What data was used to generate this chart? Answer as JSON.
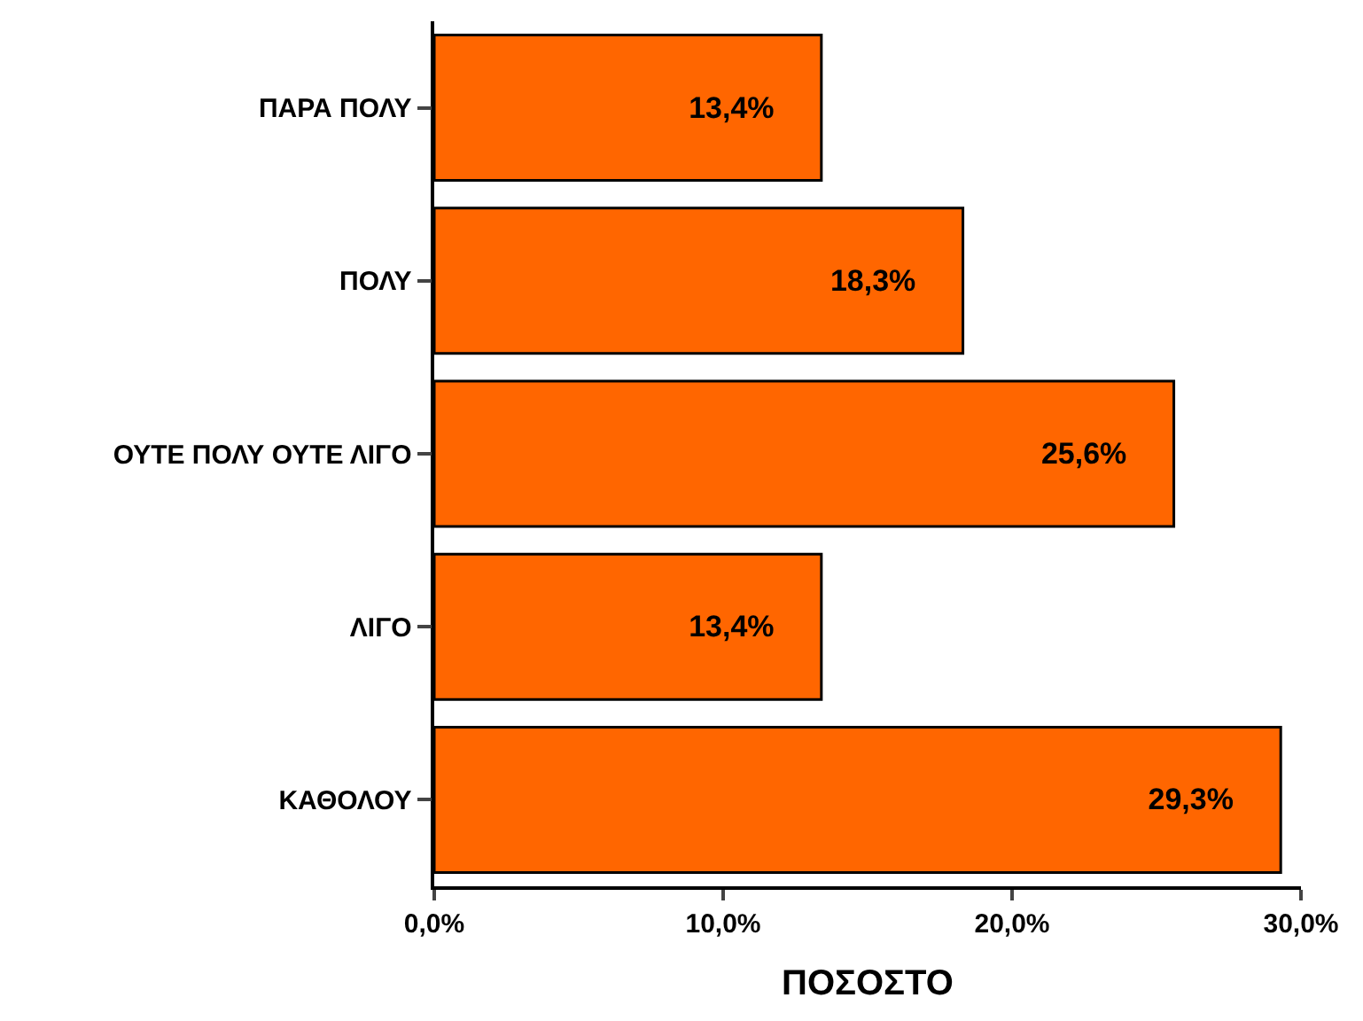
{
  "chart_data": {
    "type": "bar",
    "orientation": "horizontal",
    "xlabel": "ΠΟΣΟΣΤΟ",
    "categories": [
      "ΠΑΡΑ ΠΟΛΥ",
      "ΠΟΛΥ",
      "ΟΥΤΕ ΠΟΛΥ ΟΥΤΕ ΛΙΓΟ",
      "ΛΙΓΟ",
      "ΚΑΘΟΛΟΥ"
    ],
    "values": [
      13.4,
      18.3,
      25.6,
      13.4,
      29.3
    ],
    "value_labels": [
      "13,4%",
      "18,3%",
      "25,6%",
      "13,4%",
      "29,3%"
    ],
    "color": "#ff6600",
    "xlim": [
      0,
      30
    ],
    "xticks": [
      {
        "value": 0,
        "label": "0,0%"
      },
      {
        "value": 10,
        "label": "10,0%"
      },
      {
        "value": 20,
        "label": "20,0%"
      },
      {
        "value": 30,
        "label": "30,0%"
      }
    ]
  }
}
